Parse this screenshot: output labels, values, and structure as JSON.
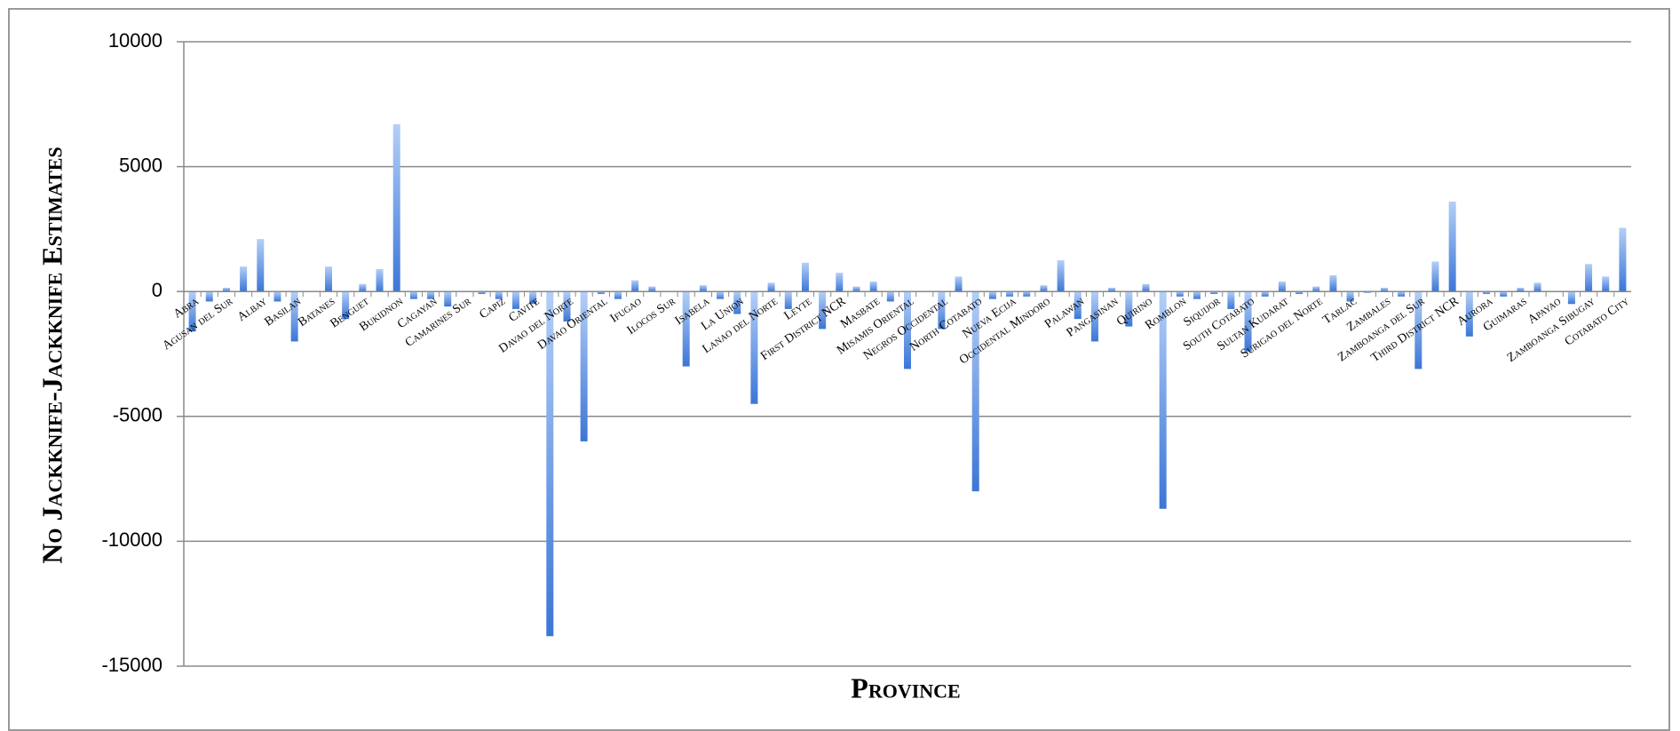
{
  "chart_data": {
    "type": "bar",
    "x_label": "Province",
    "y_label": "No Jackknife-Jackknife Estimates",
    "color": "#3b76d6",
    "grid": true,
    "ylim": [
      -15000,
      10000
    ],
    "yticks": [
      10000,
      5000,
      0,
      -5000,
      -10000,
      -15000
    ],
    "categories": [
      "Abra",
      null,
      "Agusan del Sur",
      null,
      "Albay",
      null,
      "Basilan",
      null,
      "Batanes",
      null,
      "Benguet",
      null,
      "Bukidnon",
      null,
      "Cagayan",
      null,
      "Camarines Sur",
      null,
      "Capiz",
      null,
      "Cavite",
      null,
      "Davao del Norte",
      null,
      "Davao Oriental",
      null,
      "Ifugao",
      null,
      "Ilocos Sur",
      null,
      "Isabela",
      null,
      "La Union",
      null,
      "Lanao del Norte",
      null,
      "Leyte",
      null,
      "First District NCR",
      null,
      "Masbate",
      null,
      "Misamis Oriental",
      null,
      "Negros Occidental",
      null,
      "North Cotabato",
      null,
      "Nueva Ecija",
      null,
      "Occidental Mindoro",
      null,
      "Palawan",
      null,
      "Pangasinan",
      null,
      "Quirino",
      null,
      "Romblon",
      null,
      "Siquijor",
      null,
      "South Cotabato",
      null,
      "Sultan Kudarat",
      null,
      "Surigao del Norte",
      null,
      "Tarlac",
      null,
      "Zambales",
      null,
      "Zamboanga del Sur",
      null,
      "Third District NCR",
      null,
      "Aurora",
      null,
      "Guimaras",
      null,
      "Apayao",
      null,
      "Zamboanga Sibugay",
      null,
      "Cotabato City"
    ],
    "values": [
      -1600,
      -400,
      150,
      1000,
      2100,
      -400,
      -2000,
      0,
      1000,
      -1100,
      300,
      900,
      6700,
      -300,
      -300,
      -600,
      0,
      -100,
      -300,
      -700,
      -500,
      -13800,
      -1200,
      -6000,
      -100,
      -300,
      450,
      200,
      0,
      -3000,
      250,
      -300,
      -900,
      -4500,
      350,
      -700,
      1150,
      -1500,
      750,
      200,
      400,
      -400,
      -3100,
      0,
      -1500,
      600,
      -8000,
      -300,
      -200,
      -200,
      250,
      1250,
      -1100,
      -2000,
      150,
      -1400,
      300,
      -8700,
      -200,
      -300,
      -100,
      -700,
      -2400,
      -200,
      400,
      -100,
      200,
      650,
      -400,
      -50,
      150,
      -200,
      -3100,
      1200,
      3600,
      -1800,
      -100,
      -200,
      150,
      350,
      0,
      -500,
      1100,
      600,
      2550
    ]
  }
}
